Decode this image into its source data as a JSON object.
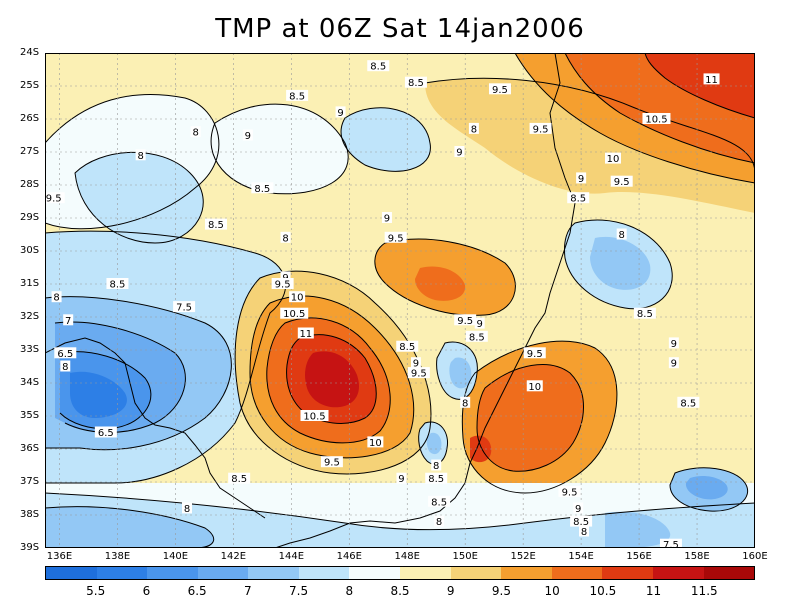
{
  "title": "TMP at 06Z Sat 14jan2006",
  "map": {
    "lat_labels": [
      "24S",
      "25S",
      "26S",
      "27S",
      "28S",
      "29S",
      "30S",
      "31S",
      "32S",
      "33S",
      "34S",
      "35S",
      "36S",
      "37S",
      "38S",
      "39S"
    ],
    "lon_labels": [
      "136E",
      "138E",
      "140E",
      "142E",
      "144E",
      "146E",
      "148E",
      "150E",
      "152E",
      "154E",
      "156E",
      "158E",
      "160E"
    ],
    "contour_labels": [
      {
        "text": "8.5",
        "lon": 147.0,
        "lat": 24.4
      },
      {
        "text": "8.5",
        "lon": 148.3,
        "lat": 24.9
      },
      {
        "text": "8.5",
        "lon": 144.2,
        "lat": 25.3
      },
      {
        "text": "9",
        "lon": 145.7,
        "lat": 25.8
      },
      {
        "text": "9.5",
        "lon": 151.2,
        "lat": 25.1
      },
      {
        "text": "11",
        "lon": 158.5,
        "lat": 24.8
      },
      {
        "text": "10.5",
        "lon": 156.6,
        "lat": 26.0
      },
      {
        "text": "8",
        "lon": 140.7,
        "lat": 26.4
      },
      {
        "text": "9",
        "lon": 142.5,
        "lat": 26.5
      },
      {
        "text": "8",
        "lon": 150.3,
        "lat": 26.3
      },
      {
        "text": "9.5",
        "lon": 152.6,
        "lat": 26.3
      },
      {
        "text": "9",
        "lon": 149.8,
        "lat": 27.0
      },
      {
        "text": "8",
        "lon": 138.8,
        "lat": 27.1
      },
      {
        "text": "10",
        "lon": 155.1,
        "lat": 27.2
      },
      {
        "text": "8.5",
        "lon": 143.0,
        "lat": 28.1
      },
      {
        "text": "9",
        "lon": 154.0,
        "lat": 27.8
      },
      {
        "text": "9.5",
        "lon": 155.4,
        "lat": 27.9
      },
      {
        "text": "9.5",
        "lon": 135.8,
        "lat": 28.4
      },
      {
        "text": "8.5",
        "lon": 153.9,
        "lat": 28.4
      },
      {
        "text": "9",
        "lon": 147.3,
        "lat": 29.0
      },
      {
        "text": "8.5",
        "lon": 141.4,
        "lat": 29.2
      },
      {
        "text": "8",
        "lon": 143.8,
        "lat": 29.6
      },
      {
        "text": "9.5",
        "lon": 147.6,
        "lat": 29.6
      },
      {
        "text": "8",
        "lon": 155.4,
        "lat": 29.5
      },
      {
        "text": "9",
        "lon": 143.8,
        "lat": 30.8
      },
      {
        "text": "9.5",
        "lon": 143.7,
        "lat": 31.0
      },
      {
        "text": "8.5",
        "lon": 138.0,
        "lat": 31.0
      },
      {
        "text": "8",
        "lon": 135.9,
        "lat": 31.4
      },
      {
        "text": "10",
        "lon": 144.2,
        "lat": 31.4
      },
      {
        "text": "7.5",
        "lon": 140.3,
        "lat": 31.7
      },
      {
        "text": "10.5",
        "lon": 144.1,
        "lat": 31.9
      },
      {
        "text": "7",
        "lon": 136.3,
        "lat": 32.1
      },
      {
        "text": "8.5",
        "lon": 156.2,
        "lat": 31.9
      },
      {
        "text": "9.5",
        "lon": 150.0,
        "lat": 32.1
      },
      {
        "text": "9",
        "lon": 150.5,
        "lat": 32.2
      },
      {
        "text": "11",
        "lon": 144.5,
        "lat": 32.5
      },
      {
        "text": "8.5",
        "lon": 150.4,
        "lat": 32.6
      },
      {
        "text": "9",
        "lon": 157.2,
        "lat": 32.8
      },
      {
        "text": "8.5",
        "lon": 148.0,
        "lat": 32.9
      },
      {
        "text": "6.5",
        "lon": 136.2,
        "lat": 33.1
      },
      {
        "text": "9.5",
        "lon": 152.4,
        "lat": 33.1
      },
      {
        "text": "8",
        "lon": 136.2,
        "lat": 33.5
      },
      {
        "text": "9",
        "lon": 148.3,
        "lat": 33.4
      },
      {
        "text": "9",
        "lon": 157.2,
        "lat": 33.4
      },
      {
        "text": "9.5",
        "lon": 148.4,
        "lat": 33.7
      },
      {
        "text": "10",
        "lon": 152.4,
        "lat": 34.1
      },
      {
        "text": "8",
        "lon": 150.0,
        "lat": 34.6
      },
      {
        "text": "8.5",
        "lon": 157.7,
        "lat": 34.6
      },
      {
        "text": "10.5",
        "lon": 144.8,
        "lat": 35.0
      },
      {
        "text": "6.5",
        "lon": 137.6,
        "lat": 35.5
      },
      {
        "text": "10",
        "lon": 146.9,
        "lat": 35.8
      },
      {
        "text": "9.5",
        "lon": 145.4,
        "lat": 36.4
      },
      {
        "text": "8",
        "lon": 149.0,
        "lat": 36.5
      },
      {
        "text": "9",
        "lon": 147.8,
        "lat": 36.9
      },
      {
        "text": "8.5",
        "lon": 142.2,
        "lat": 36.9
      },
      {
        "text": "8.5",
        "lon": 149.0,
        "lat": 36.9
      },
      {
        "text": "9.5",
        "lon": 153.6,
        "lat": 37.3
      },
      {
        "text": "8.5",
        "lon": 149.1,
        "lat": 37.6
      },
      {
        "text": "9",
        "lon": 153.9,
        "lat": 37.8
      },
      {
        "text": "8",
        "lon": 140.4,
        "lat": 37.8
      },
      {
        "text": "8.5",
        "lon": 154.0,
        "lat": 38.2
      },
      {
        "text": "8",
        "lon": 149.1,
        "lat": 38.2
      },
      {
        "text": "8",
        "lon": 154.1,
        "lat": 38.5
      },
      {
        "text": "7.5",
        "lon": 157.1,
        "lat": 38.9
      }
    ]
  },
  "colorbar": {
    "labels": [
      "5.5",
      "6",
      "6.5",
      "7",
      "7.5",
      "8",
      "8.5",
      "9",
      "9.5",
      "10",
      "10.5",
      "11",
      "11.5"
    ],
    "colors": [
      "#1e6fdc",
      "#2d7fe6",
      "#4a95ec",
      "#6aabf0",
      "#93c8f5",
      "#bfe4fa",
      "#f4fcfd",
      "#fbf0b4",
      "#f5d277",
      "#f59f2f",
      "#ef6d1c",
      "#e03a12",
      "#c61313",
      "#a80808"
    ]
  }
}
